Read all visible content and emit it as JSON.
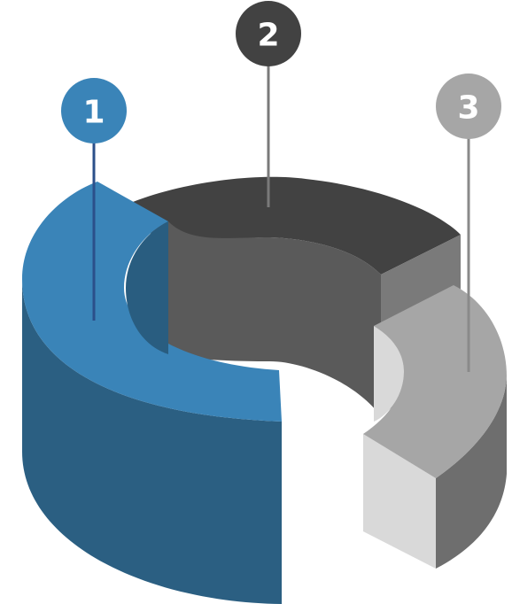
{
  "segments": [
    {
      "label": "1",
      "color": "#3a84b8",
      "side_color": "#2b5f82",
      "inner_color": "#295d80"
    },
    {
      "label": "2",
      "color": "#424242",
      "side_color": "#5a5a5a",
      "inner_color": "#5a5a5a"
    },
    {
      "label": "3",
      "color": "#a6a6a6",
      "side_color": "#6e6e6e",
      "inner_color": "#d9d9d9"
    }
  ],
  "marker_colors": [
    "#3a84b8",
    "#424242",
    "#a6a6a6"
  ]
}
